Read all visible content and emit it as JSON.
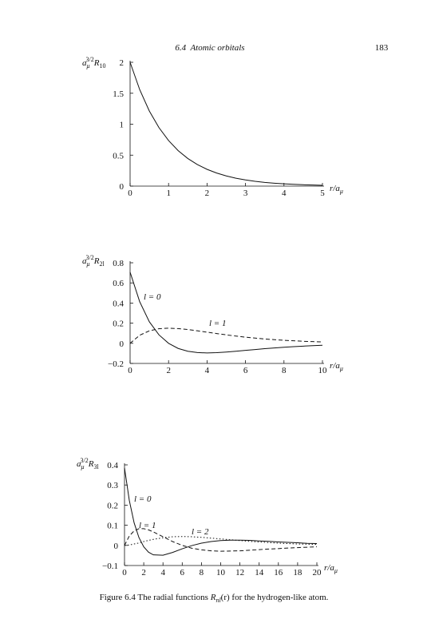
{
  "header": {
    "title": "6.4  Atomic orbitals",
    "page": "183"
  },
  "chart_data": [
    {
      "type": "line",
      "ylabel": [
        "a",
        "μ",
        "3/2",
        "R",
        "10"
      ],
      "xlabel": [
        "r/a",
        "μ"
      ],
      "color": "#111",
      "dash": "solid",
      "x": [
        0,
        0.25,
        0.5,
        0.75,
        1,
        1.25,
        1.5,
        1.75,
        2,
        2.25,
        2.5,
        2.75,
        3,
        3.25,
        3.5,
        3.75,
        4,
        4.25,
        4.5,
        4.75,
        5
      ],
      "values": [
        2,
        1.558,
        1.213,
        0.945,
        0.736,
        0.573,
        0.446,
        0.348,
        0.271,
        0.211,
        0.164,
        0.128,
        0.1,
        0.078,
        0.06,
        0.047,
        0.037,
        0.029,
        0.022,
        0.017,
        0.013
      ],
      "xlim": [
        0,
        5
      ],
      "ylim": [
        0,
        2
      ],
      "xticks": [
        0,
        1,
        2,
        3,
        4,
        5
      ],
      "yticks": [
        0,
        0.5,
        1,
        1.5,
        2
      ]
    },
    {
      "type": "line",
      "ylabel": [
        "a",
        "μ",
        "3/2",
        "R",
        "2l"
      ],
      "xlabel": [
        "r/a",
        "μ"
      ],
      "x": [
        0,
        0.5,
        1,
        1.5,
        2,
        2.5,
        3,
        3.5,
        4,
        4.5,
        5,
        5.5,
        6,
        6.5,
        7,
        7.5,
        8,
        8.5,
        9,
        9.5,
        10
      ],
      "series": [
        {
          "name": "l = 0",
          "color": "#111",
          "dash": "solid",
          "values": [
            0.707,
            0.413,
            0.214,
            0.084,
            0,
            -0.051,
            -0.079,
            -0.092,
            -0.096,
            -0.093,
            -0.087,
            -0.079,
            -0.07,
            -0.062,
            -0.053,
            -0.046,
            -0.039,
            -0.033,
            -0.028,
            -0.023,
            -0.019
          ]
        },
        {
          "name": "l = 1",
          "color": "#111",
          "dash": "dashed",
          "values": [
            0,
            0.08,
            0.124,
            0.145,
            0.15,
            0.146,
            0.137,
            0.124,
            0.111,
            0.097,
            0.084,
            0.072,
            0.061,
            0.052,
            0.043,
            0.036,
            0.03,
            0.025,
            0.02,
            0.017,
            0.014
          ]
        }
      ],
      "xlim": [
        0,
        10
      ],
      "ylim": [
        -0.2,
        0.8
      ],
      "xticks": [
        0,
        2,
        4,
        6,
        8,
        10
      ],
      "yticks": [
        {
          "value": -0.2,
          "label": "−0.2"
        },
        0,
        0.2,
        0.4,
        0.6,
        0.8
      ]
    },
    {
      "type": "line",
      "ylabel": [
        "a",
        "μ",
        "3/2",
        "R",
        "3l"
      ],
      "xlabel": [
        "r/a",
        "μ"
      ],
      "x": [
        0,
        0.5,
        1,
        1.5,
        2,
        2.5,
        3,
        4,
        5,
        6,
        7,
        8,
        9,
        10,
        11,
        12,
        13,
        14,
        15,
        16,
        17,
        18,
        19,
        20
      ],
      "series": [
        {
          "name": "l = 0",
          "color": "#111",
          "dash": "solid",
          "values": [
            0.385,
            0.223,
            0.112,
            0.039,
            -0.007,
            -0.034,
            -0.047,
            -0.049,
            -0.035,
            -0.017,
            -0.001,
            0.011,
            0.019,
            0.024,
            0.026,
            0.026,
            0.025,
            0.022,
            0.02,
            0.017,
            0.015,
            0.013,
            0.01,
            0.009
          ]
        },
        {
          "name": "l = 1",
          "color": "#111",
          "dash": "dashed",
          "values": [
            0,
            0.047,
            0.072,
            0.083,
            0.083,
            0.077,
            0.067,
            0.043,
            0.019,
            0,
            -0.014,
            -0.022,
            -0.027,
            -0.029,
            -0.028,
            -0.027,
            -0.024,
            -0.021,
            -0.018,
            -0.016,
            -0.013,
            -0.011,
            -0.009,
            -0.007
          ]
        },
        {
          "name": "l = 2",
          "color": "#111",
          "dash": "dotted",
          "values": [
            0,
            0.002,
            0.007,
            0.012,
            0.019,
            0.025,
            0.03,
            0.038,
            0.043,
            0.044,
            0.043,
            0.04,
            0.036,
            0.032,
            0.028,
            0.024,
            0.02,
            0.017,
            0.014,
            0.011,
            0.009,
            0.007,
            0.006,
            0.005
          ]
        }
      ],
      "xlim": [
        0,
        20
      ],
      "ylim": [
        -0.1,
        0.4
      ],
      "xticks": [
        0,
        2,
        4,
        6,
        8,
        10,
        12,
        14,
        16,
        18,
        20
      ],
      "yticks": [
        {
          "value": -0.1,
          "label": "−0.1"
        },
        0,
        0.1,
        0.2,
        0.3,
        0.4
      ]
    }
  ],
  "caption": [
    "Figure 6.4 The radial functions ",
    "R",
    "nl",
    "(r)",
    " for the hydrogen-like atom."
  ]
}
